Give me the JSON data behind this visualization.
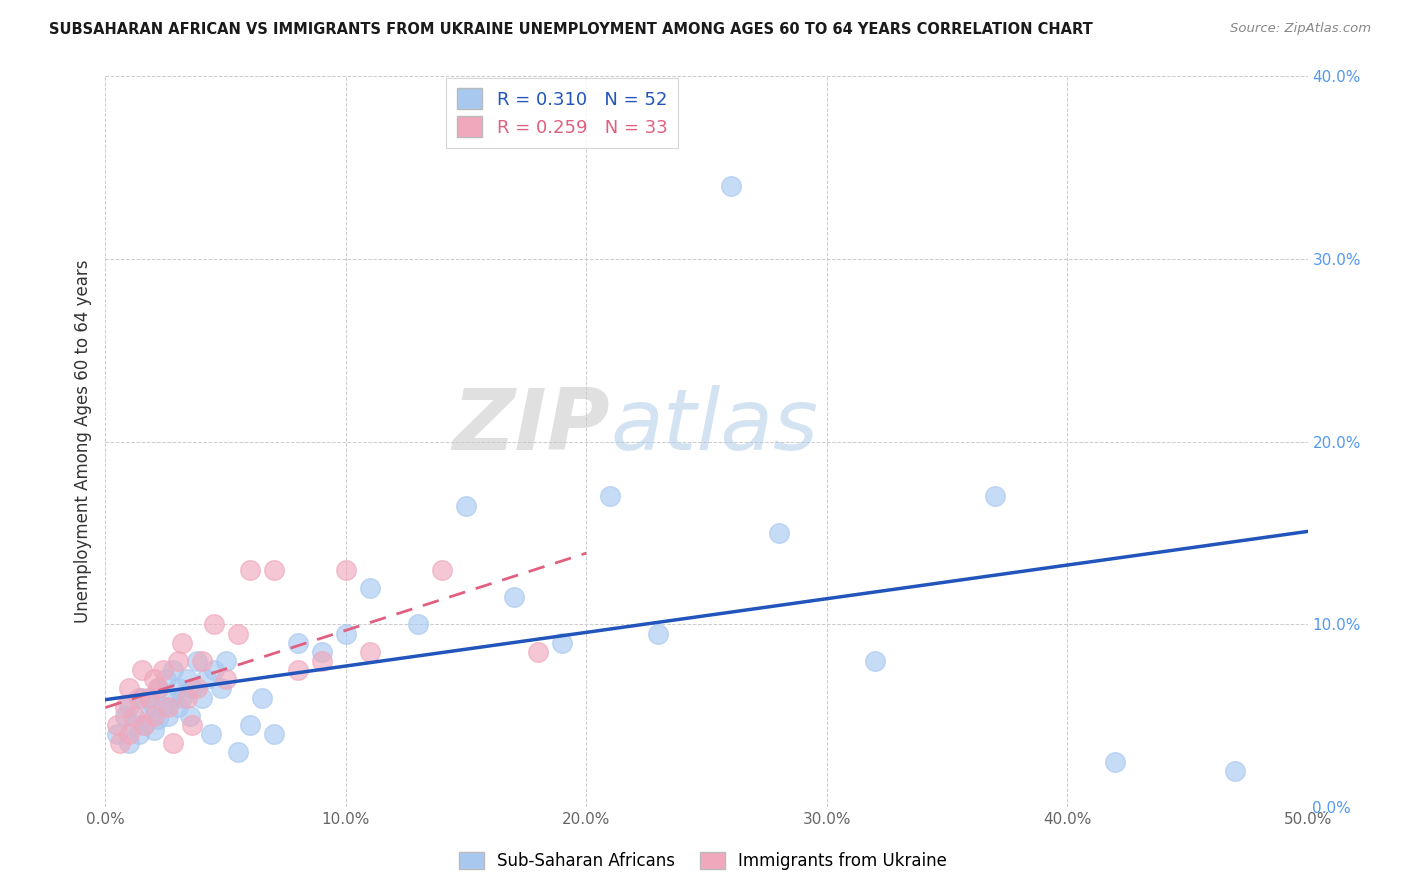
{
  "title": "SUBSAHARAN AFRICAN VS IMMIGRANTS FROM UKRAINE UNEMPLOYMENT AMONG AGES 60 TO 64 YEARS CORRELATION CHART",
  "source": "Source: ZipAtlas.com",
  "ylabel": "Unemployment Among Ages 60 to 64 years",
  "xlim": [
    0.0,
    0.5
  ],
  "ylim": [
    0.0,
    0.4
  ],
  "xticks": [
    0.0,
    0.1,
    0.2,
    0.3,
    0.4,
    0.5
  ],
  "yticks": [
    0.0,
    0.1,
    0.2,
    0.3,
    0.4
  ],
  "xticklabels": [
    "0.0%",
    "10.0%",
    "20.0%",
    "30.0%",
    "40.0%",
    "50.0%"
  ],
  "yticklabels_right": [
    "0.0%",
    "10.0%",
    "20.0%",
    "30.0%",
    "40.0%"
  ],
  "blue_R": 0.31,
  "blue_N": 52,
  "pink_R": 0.259,
  "pink_N": 33,
  "blue_color": "#a8c8f0",
  "pink_color": "#f0a8bc",
  "trend_blue_color": "#2255bb",
  "trend_pink_color": "#e06080",
  "watermark_zip": "ZIP",
  "watermark_atlas": "atlas",
  "legend_label_blue": "Sub-Saharan Africans",
  "legend_label_pink": "Immigrants from Ukraine",
  "blue_x": [
    0.005,
    0.008,
    0.01,
    0.01,
    0.012,
    0.014,
    0.015,
    0.016,
    0.018,
    0.018,
    0.02,
    0.02,
    0.022,
    0.022,
    0.024,
    0.025,
    0.026,
    0.028,
    0.028,
    0.03,
    0.03,
    0.032,
    0.034,
    0.035,
    0.036,
    0.038,
    0.04,
    0.042,
    0.044,
    0.045,
    0.048,
    0.05,
    0.055,
    0.06,
    0.065,
    0.07,
    0.08,
    0.09,
    0.1,
    0.11,
    0.13,
    0.15,
    0.17,
    0.19,
    0.21,
    0.23,
    0.26,
    0.28,
    0.32,
    0.37,
    0.42,
    0.47
  ],
  "blue_y": [
    0.04,
    0.05,
    0.035,
    0.055,
    0.045,
    0.04,
    0.06,
    0.045,
    0.05,
    0.06,
    0.042,
    0.055,
    0.048,
    0.065,
    0.055,
    0.07,
    0.05,
    0.06,
    0.075,
    0.055,
    0.065,
    0.06,
    0.07,
    0.05,
    0.065,
    0.08,
    0.06,
    0.07,
    0.04,
    0.075,
    0.065,
    0.08,
    0.03,
    0.045,
    0.06,
    0.04,
    0.09,
    0.085,
    0.095,
    0.12,
    0.1,
    0.165,
    0.115,
    0.09,
    0.17,
    0.095,
    0.34,
    0.15,
    0.08,
    0.17,
    0.025,
    0.02
  ],
  "pink_x": [
    0.005,
    0.006,
    0.008,
    0.01,
    0.01,
    0.012,
    0.014,
    0.015,
    0.016,
    0.018,
    0.02,
    0.02,
    0.022,
    0.024,
    0.026,
    0.028,
    0.03,
    0.032,
    0.034,
    0.036,
    0.038,
    0.04,
    0.045,
    0.05,
    0.055,
    0.06,
    0.07,
    0.08,
    0.09,
    0.1,
    0.11,
    0.14,
    0.18
  ],
  "pink_y": [
    0.045,
    0.035,
    0.055,
    0.04,
    0.065,
    0.05,
    0.06,
    0.075,
    0.045,
    0.06,
    0.05,
    0.07,
    0.065,
    0.075,
    0.055,
    0.035,
    0.08,
    0.09,
    0.06,
    0.045,
    0.065,
    0.08,
    0.1,
    0.07,
    0.095,
    0.13,
    0.13,
    0.075,
    0.08,
    0.13,
    0.085,
    0.13,
    0.085
  ],
  "blue_trend_x0": 0.0,
  "blue_trend_y0": 0.04,
  "blue_trend_x1": 0.5,
  "blue_trend_y1": 0.14,
  "pink_trend_x0": 0.0,
  "pink_trend_y0": 0.046,
  "pink_trend_x1": 0.2,
  "pink_trend_y1": 0.09
}
